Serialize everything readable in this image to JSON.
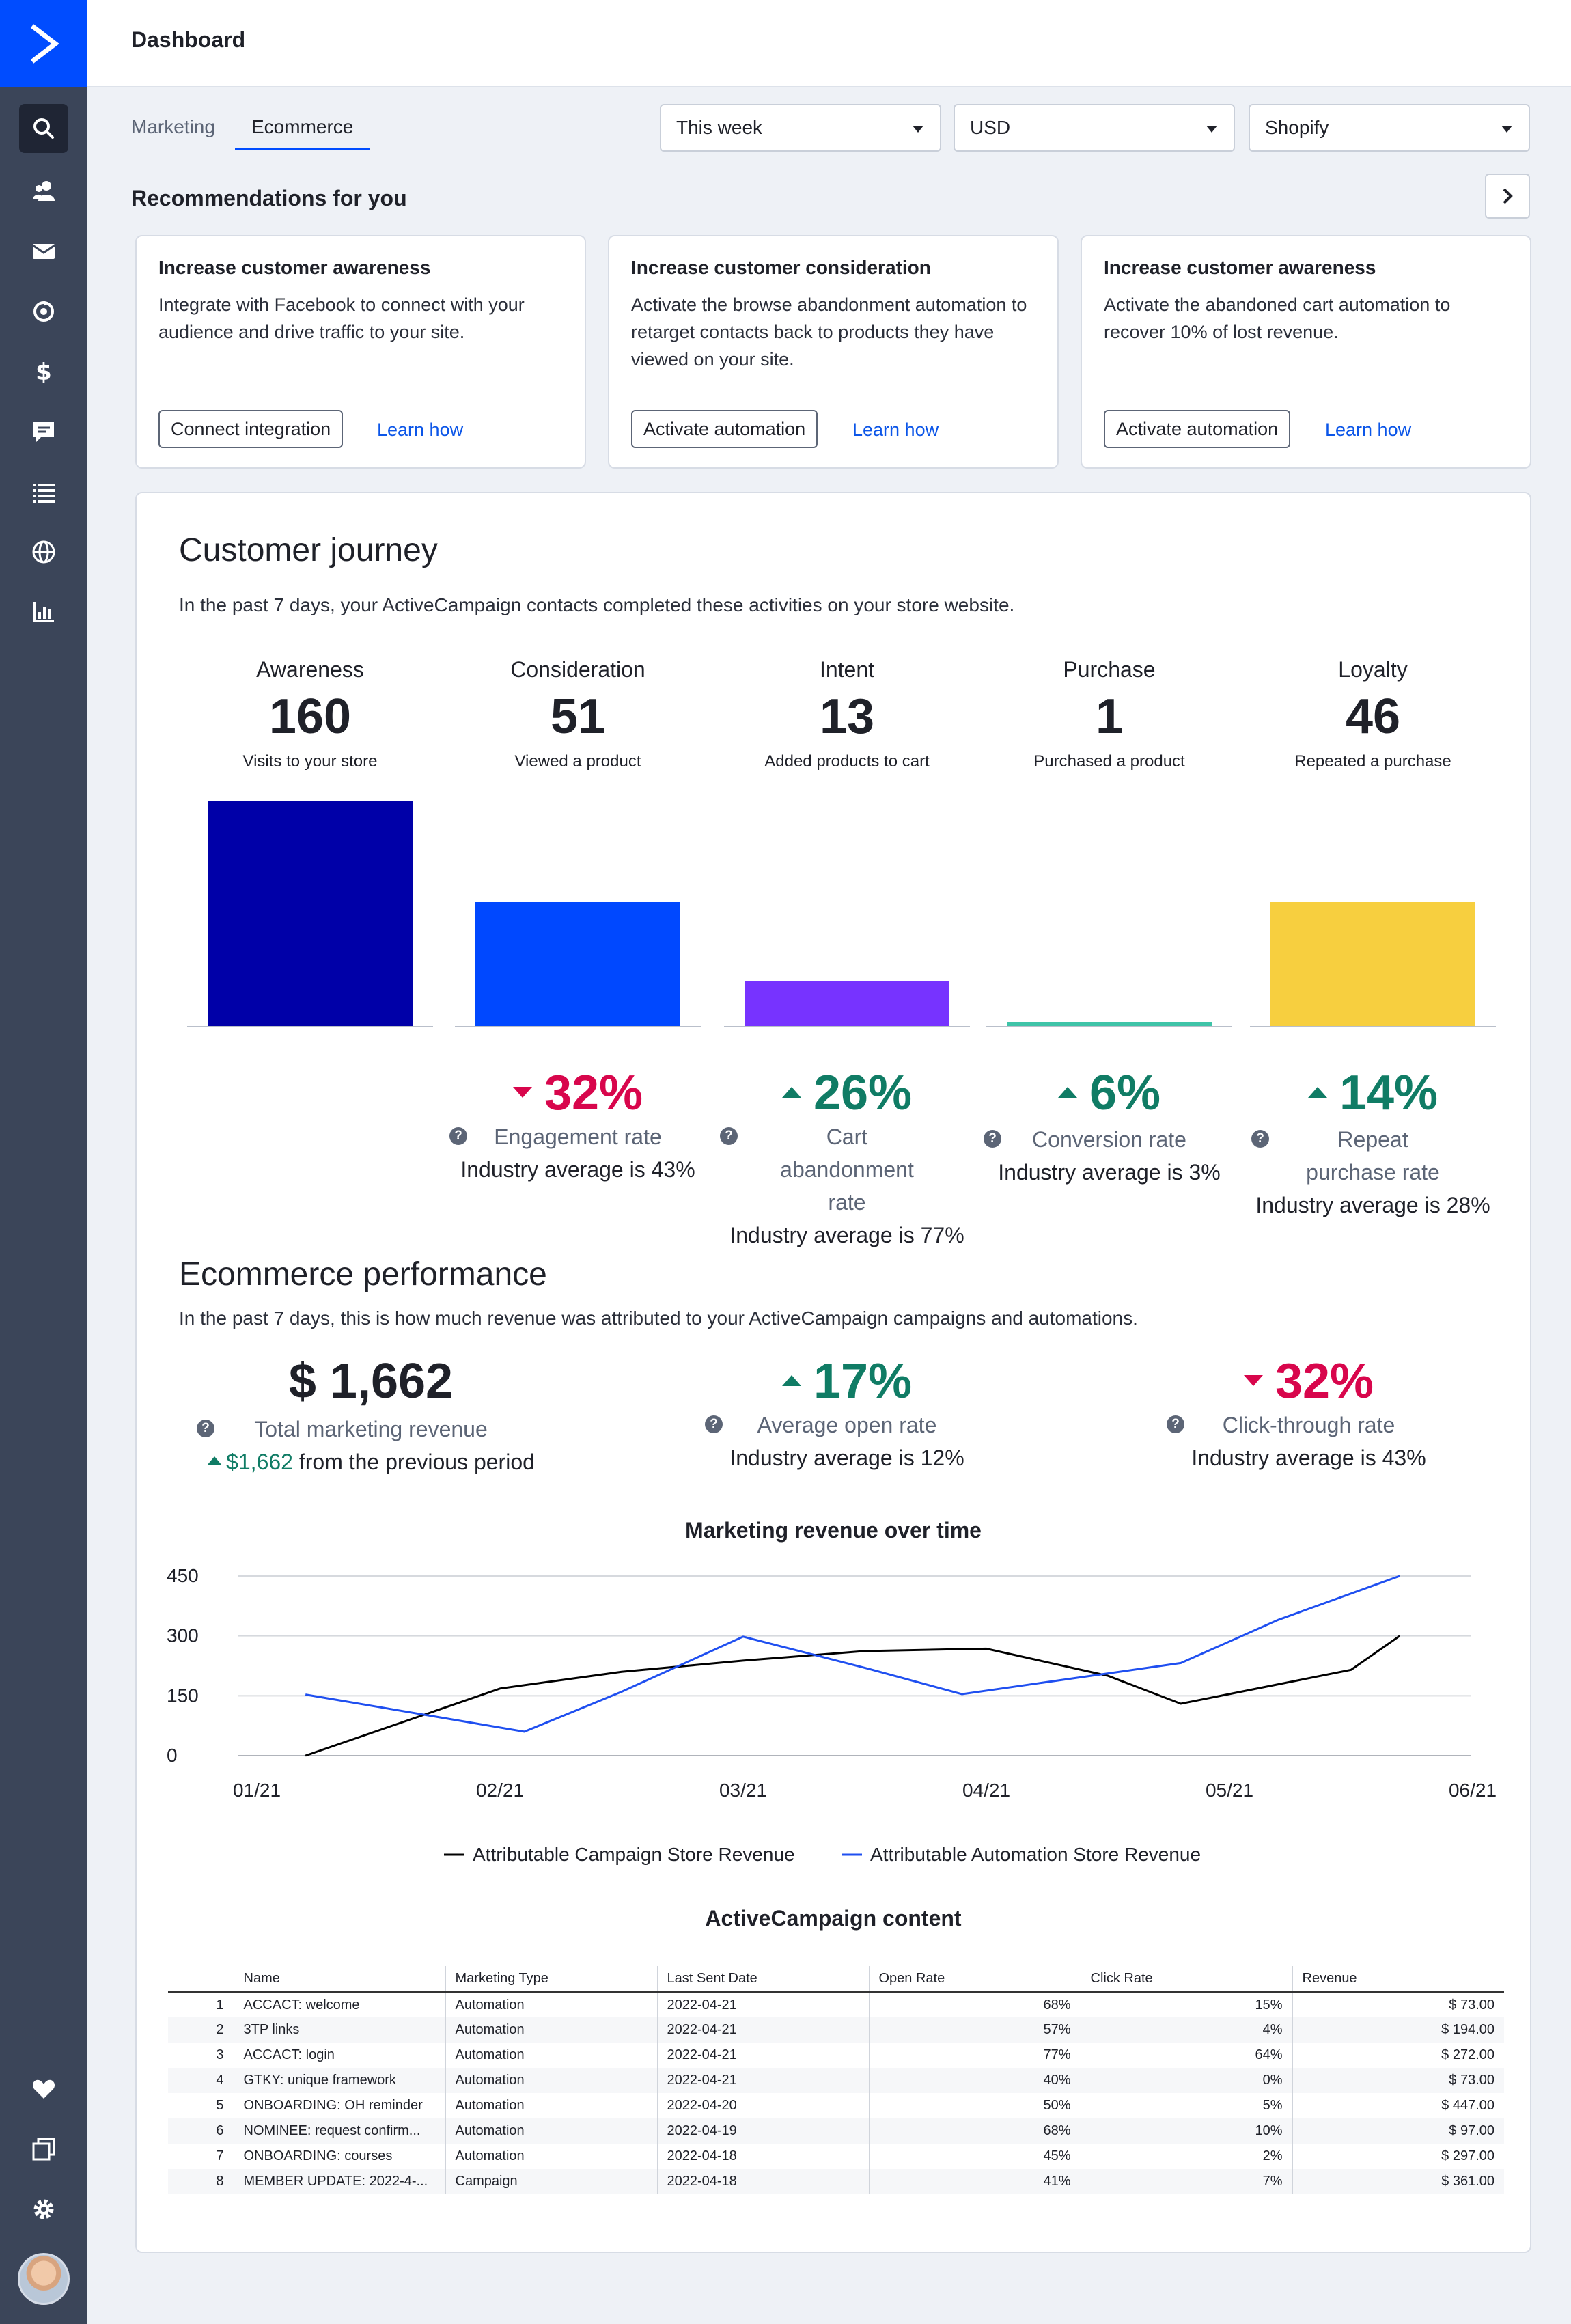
{
  "header": {
    "title": "Dashboard"
  },
  "tabs": [
    {
      "label": "Marketing"
    },
    {
      "label": "Ecommerce"
    }
  ],
  "filters": {
    "period": "This week",
    "currency": "USD",
    "store": "Shopify"
  },
  "recommendations": {
    "title": "Recommendations for you",
    "cards": [
      {
        "title": "Increase customer awareness",
        "text": "Integrate with Facebook to connect with your audience and drive traffic to your site.",
        "button": "Connect integration",
        "link": "Learn how"
      },
      {
        "title": "Increase customer consideration",
        "text": "Activate the browse abandonment automation to retarget contacts back to products they have viewed on your site.",
        "button": "Activate automation",
        "link": "Learn how"
      },
      {
        "title": "Increase customer awareness",
        "text": "Activate the abandoned cart automation to recover 10% of lost revenue.",
        "button": "Activate automation",
        "link": "Learn how"
      }
    ]
  },
  "journey": {
    "title": "Customer journey",
    "subtitle": "In the past 7 days, your ActiveCampaign contacts completed these activities on your store website.",
    "stages": [
      {
        "label": "Awareness",
        "value": "160",
        "desc": "Visits to your store"
      },
      {
        "label": "Consideration",
        "value": "51",
        "desc": "Viewed a product"
      },
      {
        "label": "Intent",
        "value": "13",
        "desc": "Added products to cart"
      },
      {
        "label": "Purchase",
        "value": "1",
        "desc": "Purchased a product"
      },
      {
        "label": "Loyalty",
        "value": "46",
        "desc": "Repeated a purchase"
      }
    ],
    "bar_values": [
      160,
      51,
      13,
      1,
      46
    ],
    "bar_colors": [
      "#0000a8",
      "#0048ff",
      "#7733ff",
      "#3fc4a8",
      "#f7cf3f"
    ],
    "metrics": [
      {
        "value": "32%",
        "direction": "down",
        "label": "Engagement rate",
        "industry": "Industry average is 43%"
      },
      {
        "value": "26%",
        "direction": "up",
        "label": "Cart abandonment rate",
        "industry": "Industry average is 77%"
      },
      {
        "value": "6%",
        "direction": "up",
        "label": "Conversion rate",
        "industry": "Industry average is 3%"
      },
      {
        "value": "14%",
        "direction": "up",
        "label": "Repeat purchase rate",
        "industry": "Industry average is 28%"
      }
    ]
  },
  "performance": {
    "title": "Ecommerce performance",
    "subtitle": "In the past 7 days, this is how much revenue was attributed to your ActiveCampaign campaigns and automations.",
    "revenue": {
      "value": "$ 1,662",
      "label": "Total marketing revenue",
      "change": "$1,662",
      "change_text": "from the previous period"
    },
    "open_rate": {
      "value": "17%",
      "label": "Average open rate",
      "industry": "Industry average is 12%"
    },
    "click_rate": {
      "value": "32%",
      "label": "Click-through rate",
      "industry": "Industry average is 43%"
    }
  },
  "chart_data": {
    "type": "line",
    "title": "Marketing revenue over time",
    "x": [
      "01/21",
      "02/21",
      "03/21",
      "04/21",
      "05/21",
      "06/21"
    ],
    "ylim": [
      0,
      450
    ],
    "yticks": [
      0,
      150,
      300,
      450
    ],
    "series": [
      {
        "name": "Attributable Campaign Store Revenue",
        "color": "#000000",
        "points": [
          [
            0.2,
            0
          ],
          [
            1.0,
            168
          ],
          [
            1.5,
            210
          ],
          [
            2.0,
            238
          ],
          [
            2.5,
            262
          ],
          [
            3.0,
            268
          ],
          [
            3.5,
            200
          ],
          [
            3.8,
            130
          ],
          [
            4.5,
            215
          ],
          [
            4.7,
            300
          ]
        ]
      },
      {
        "name": "Attributable Automation Store Revenue",
        "color": "#1f4ff0",
        "points": [
          [
            0.2,
            153
          ],
          [
            1.1,
            60
          ],
          [
            1.5,
            160
          ],
          [
            2.0,
            298
          ],
          [
            2.5,
            220
          ],
          [
            2.9,
            154
          ],
          [
            3.2,
            180
          ],
          [
            3.8,
            232
          ],
          [
            4.2,
            340
          ],
          [
            4.7,
            450
          ]
        ]
      }
    ]
  },
  "content_table": {
    "title": "ActiveCampaign content",
    "columns": [
      "",
      "Name",
      "Marketing Type",
      "Last Sent Date",
      "Open Rate",
      "Click Rate",
      "Revenue"
    ],
    "rows": [
      [
        "1",
        "ACCACT: welcome",
        "Automation",
        "2022-04-21",
        "68%",
        "15%",
        "$ 73.00"
      ],
      [
        "2",
        "3TP links",
        "Automation",
        "2022-04-21",
        "57%",
        "4%",
        "$ 194.00"
      ],
      [
        "3",
        "ACCACT: login",
        "Automation",
        "2022-04-21",
        "77%",
        "64%",
        "$ 272.00"
      ],
      [
        "4",
        "GTKY: unique framework",
        "Automation",
        "2022-04-21",
        "40%",
        "0%",
        "$ 73.00"
      ],
      [
        "5",
        "ONBOARDING: OH reminder",
        "Automation",
        "2022-04-20",
        "50%",
        "5%",
        "$ 447.00"
      ],
      [
        "6",
        "NOMINEE: request confirm...",
        "Automation",
        "2022-04-19",
        "68%",
        "10%",
        "$ 97.00"
      ],
      [
        "7",
        "ONBOARDING: courses",
        "Automation",
        "2022-04-18",
        "45%",
        "2%",
        "$ 297.00"
      ],
      [
        "8",
        "MEMBER UPDATE: 2022-4-...",
        "Campaign",
        "2022-04-18",
        "41%",
        "7%",
        "$ 361.00"
      ]
    ]
  },
  "icons": [
    "activecampaign-logo-icon",
    "search-icon",
    "contacts-icon",
    "email-icon",
    "automations-icon",
    "deals-icon",
    "conversations-icon",
    "lists-icon",
    "website-icon",
    "reports-icon",
    "heart-icon",
    "apps-icon",
    "gear-icon"
  ]
}
